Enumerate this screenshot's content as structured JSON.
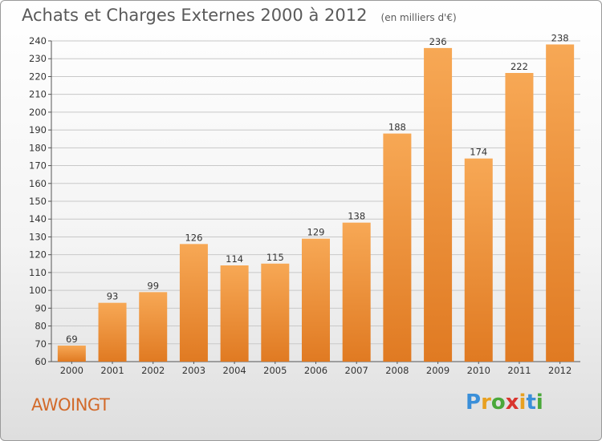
{
  "title": "Achats et Charges Externes 2000 à 2012",
  "unit": "(en milliers d'€)",
  "town": "AWOINGT",
  "logo": {
    "letters": [
      "P",
      "r",
      "o",
      "x",
      "i",
      "t",
      "i"
    ],
    "colors": [
      "#3a8fd9",
      "#e8a020",
      "#4aa83a",
      "#d9352e",
      "#e8a020",
      "#3a8fd9",
      "#4aa83a"
    ]
  },
  "colors": {
    "bar_light": "#f7a855",
    "bar_dark": "#e07a22",
    "grid": "#c8c8c8"
  },
  "chart_data": {
    "type": "bar",
    "categories": [
      "2000",
      "2001",
      "2002",
      "2003",
      "2004",
      "2005",
      "2006",
      "2007",
      "2008",
      "2009",
      "2010",
      "2011",
      "2012"
    ],
    "values": [
      69,
      93,
      99,
      126,
      114,
      115,
      129,
      138,
      188,
      236,
      174,
      222,
      238
    ],
    "yticks": [
      60,
      70,
      80,
      90,
      100,
      110,
      120,
      130,
      140,
      150,
      160,
      170,
      180,
      190,
      200,
      210,
      220,
      230,
      240
    ],
    "ylim": [
      60,
      240
    ],
    "grid": true
  }
}
